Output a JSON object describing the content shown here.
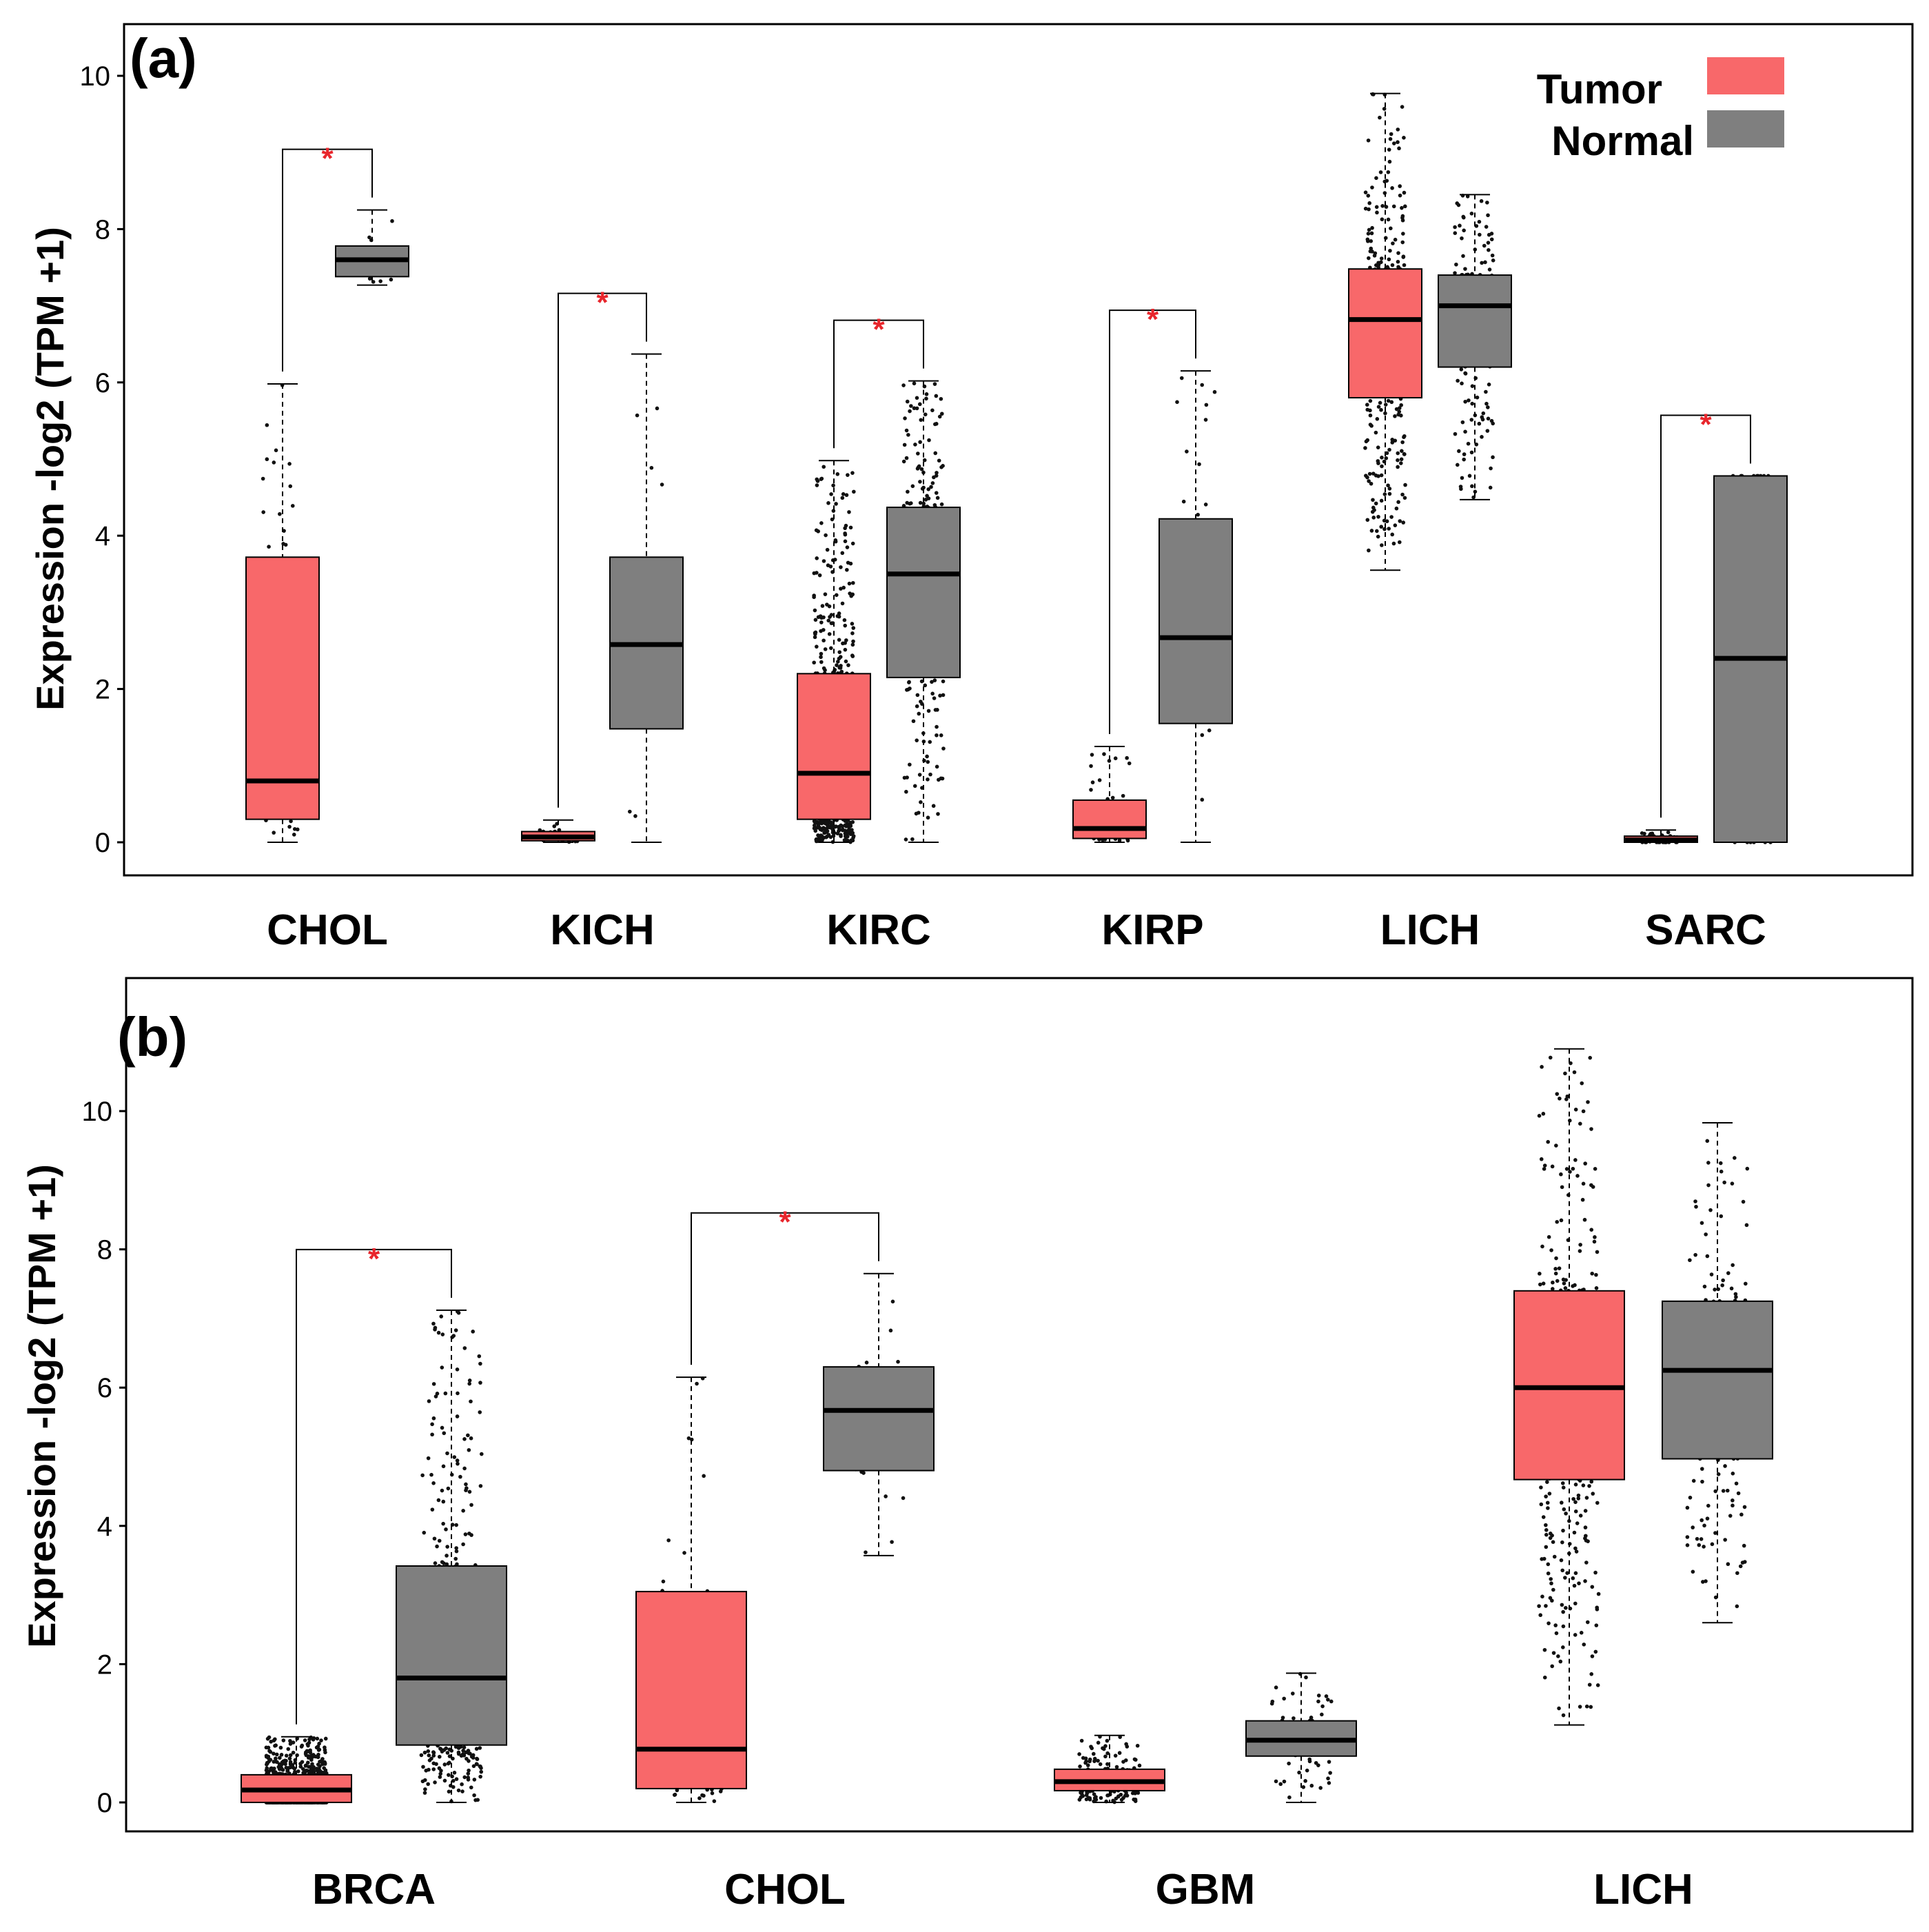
{
  "legend": {
    "tumor_label": "Tumor",
    "normal_label": "Normal",
    "tumor_color": "#F8686A",
    "normal_color": "#7F7F7F"
  },
  "chart_data": [
    {
      "type": "box",
      "panel_label": "(a)",
      "ylabel": "Expression -log2 (TPM +1)",
      "ylim": [
        -0.4,
        10.6
      ],
      "yticks": [
        "0",
        "2",
        "4",
        "6",
        "8",
        "10"
      ],
      "categories": [
        "CHOL",
        "KICH",
        "KIRC",
        "KIRP",
        "LICH",
        "SARC"
      ],
      "significance": [
        true,
        true,
        true,
        true,
        false,
        true
      ],
      "series": [
        {
          "name": "Tumor",
          "color": "#F8686A",
          "boxes": [
            {
              "min": 0.0,
              "q1": 0.3,
              "median": 0.8,
              "q3": 3.72,
              "max": 5.98
            },
            {
              "min": 0.0,
              "q1": 0.02,
              "median": 0.07,
              "q3": 0.14,
              "max": 0.29
            },
            {
              "min": 0.0,
              "q1": 0.3,
              "median": 0.9,
              "q3": 2.2,
              "max": 4.98
            },
            {
              "min": 0.0,
              "q1": 0.05,
              "median": 0.18,
              "q3": 0.55,
              "max": 1.25
            },
            {
              "min": 3.55,
              "q1": 5.8,
              "median": 6.82,
              "q3": 7.48,
              "max": 9.77
            },
            {
              "min": 0.0,
              "q1": 0.0,
              "median": 0.03,
              "q3": 0.08,
              "max": 0.16
            }
          ]
        },
        {
          "name": "Normal",
          "color": "#7F7F7F",
          "boxes": [
            {
              "min": 7.27,
              "q1": 7.38,
              "median": 7.6,
              "q3": 7.78,
              "max": 8.25
            },
            {
              "min": 0.0,
              "q1": 1.48,
              "median": 2.58,
              "q3": 3.72,
              "max": 6.37
            },
            {
              "min": 0.0,
              "q1": 2.15,
              "median": 3.5,
              "q3": 4.37,
              "max": 6.02
            },
            {
              "min": 0.0,
              "q1": 1.55,
              "median": 2.67,
              "q3": 4.22,
              "max": 6.15
            },
            {
              "min": 4.47,
              "q1": 6.2,
              "median": 7.0,
              "q3": 7.4,
              "max": 8.45
            },
            {
              "min": 0.0,
              "q1": 0.0,
              "median": 2.4,
              "q3": 4.78,
              "max": 4.78
            }
          ]
        }
      ]
    },
    {
      "type": "box",
      "panel_label": "(b)",
      "ylabel": "Expression -log2 (TPM +1)",
      "ylim": [
        -0.4,
        11.8
      ],
      "yticks": [
        "0",
        "2",
        "4",
        "6",
        "8",
        "10"
      ],
      "categories": [
        "BRCA",
        "CHOL",
        "GBM",
        "LICH"
      ],
      "significance": [
        true,
        true,
        false,
        false
      ],
      "series": [
        {
          "name": "Tumor",
          "color": "#F8686A",
          "boxes": [
            {
              "min": 0.0,
              "q1": 0.0,
              "median": 0.18,
              "q3": 0.4,
              "max": 0.95
            },
            {
              "min": 0.0,
              "q1": 0.2,
              "median": 0.77,
              "q3": 3.05,
              "max": 6.15
            },
            {
              "min": 0.0,
              "q1": 0.17,
              "median": 0.3,
              "q3": 0.48,
              "max": 0.97
            },
            {
              "min": 1.12,
              "q1": 4.67,
              "median": 6.0,
              "q3": 7.4,
              "max": 10.9
            }
          ]
        },
        {
          "name": "Normal",
          "color": "#7F7F7F",
          "boxes": [
            {
              "min": 0.0,
              "q1": 0.83,
              "median": 1.8,
              "q3": 3.42,
              "max": 7.12
            },
            {
              "min": 3.57,
              "q1": 4.8,
              "median": 5.67,
              "q3": 6.3,
              "max": 7.65
            },
            {
              "min": 0.0,
              "q1": 0.67,
              "median": 0.9,
              "q3": 1.18,
              "max": 1.87
            },
            {
              "min": 2.6,
              "q1": 4.97,
              "median": 6.25,
              "q3": 7.25,
              "max": 9.83
            }
          ]
        }
      ]
    }
  ]
}
